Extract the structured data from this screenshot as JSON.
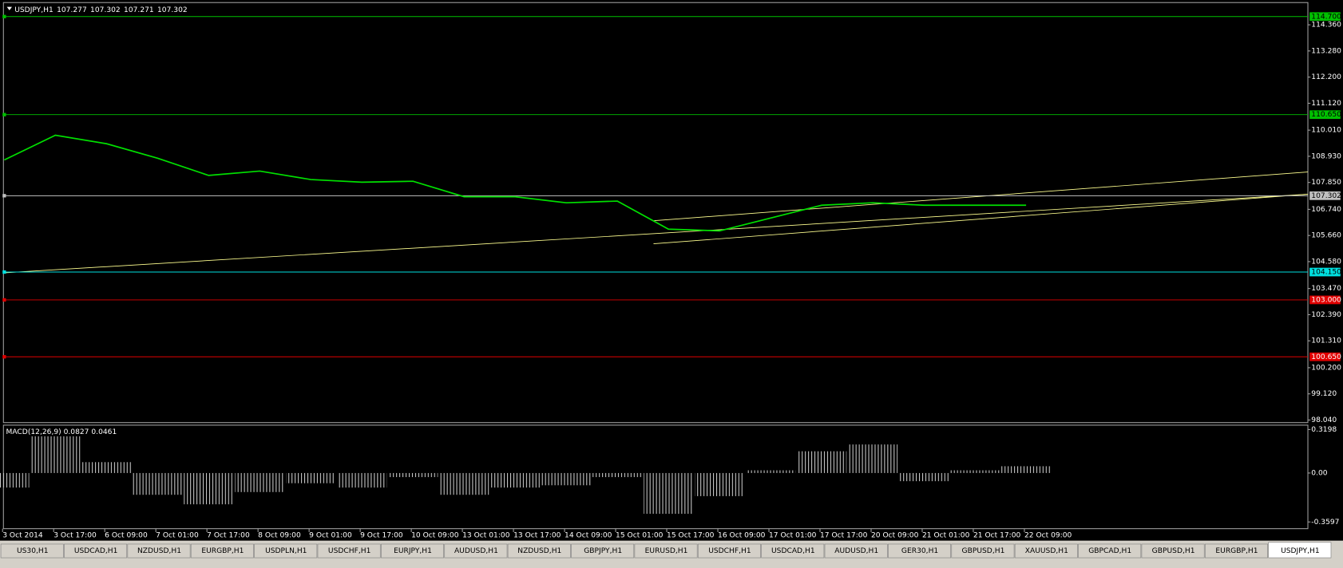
{
  "header": {
    "symbol": "USDJPY,H1",
    "open": 107.277,
    "high": 107.302,
    "low": 107.271,
    "close": 107.302
  },
  "chart_data": [
    {
      "type": "line",
      "color": "#00e000",
      "categories": [
        "3 Oct 2014",
        "3 Oct 17:00",
        "6 Oct 09:00",
        "7 Oct 01:00",
        "7 Oct 17:00",
        "8 Oct 09:00",
        "9 Oct 01:00",
        "9 Oct 17:00",
        "10 Oct 09:00",
        "13 Oct 01:00",
        "13 Oct 17:00",
        "14 Oct 09:00",
        "15 Oct 01:00",
        "15 Oct 17:00",
        "16 Oct 09:00",
        "17 Oct 01:00",
        "17 Oct 17:00",
        "20 Oct 09:00",
        "21 Oct 01:00",
        "21 Oct 17:00",
        "22 Oct 09:00"
      ],
      "values": [
        108.78,
        109.8,
        109.45,
        108.85,
        108.14,
        108.32,
        107.97,
        107.86,
        107.9,
        107.26,
        107.26,
        107.01,
        107.08,
        105.92,
        105.85,
        106.38,
        106.91,
        107.01,
        106.91,
        106.91,
        106.91
      ],
      "ylim": [
        97.934,
        115.278
      ],
      "yticks": [
        {
          "value": 114.36,
          "label": "114.360"
        },
        {
          "value": 113.28,
          "label": "113.280"
        },
        {
          "value": 112.2,
          "label": "112.200"
        },
        {
          "value": 111.12,
          "label": "111.120"
        },
        {
          "value": 110.01,
          "label": "110.010"
        },
        {
          "value": 108.93,
          "label": "108.930"
        },
        {
          "value": 107.85,
          "label": "107.850"
        },
        {
          "value": 106.74,
          "label": "106.740"
        },
        {
          "value": 105.66,
          "label": "105.660"
        },
        {
          "value": 104.58,
          "label": "104.580"
        },
        {
          "value": 103.47,
          "label": "103.470"
        },
        {
          "value": 102.39,
          "label": "102.390"
        },
        {
          "value": 101.31,
          "label": "101.310"
        },
        {
          "value": 100.2,
          "label": "100.200"
        },
        {
          "value": 99.12,
          "label": "99.120"
        },
        {
          "value": 98.04,
          "label": "98.040"
        }
      ],
      "levels": [
        {
          "value": 114.7,
          "label": "114.700",
          "color": "#00c000"
        },
        {
          "value": 110.65,
          "label": "110.650",
          "color": "#00c000"
        },
        {
          "value": 107.302,
          "label": "107.302",
          "color": "#c0c0c0"
        },
        {
          "value": 104.15,
          "label": "104.150",
          "color": "#00e0e0"
        },
        {
          "value": 103,
          "label": "103.000",
          "color": "#e00000"
        },
        {
          "value": 100.65,
          "label": "100.650",
          "color": "#e00000"
        }
      ]
    },
    {
      "type": "bar",
      "title": "MACD(12,26,9) 0.0827 0.0461",
      "color": "#c0c0c0",
      "values": [
        -0.107,
        0.27,
        0.08,
        -0.16,
        -0.23,
        -0.14,
        -0.075,
        -0.107,
        -0.03,
        -0.16,
        -0.107,
        -0.09,
        -0.03,
        -0.3,
        -0.17,
        0.02,
        0.16,
        0.21,
        -0.06,
        0.02,
        0.05
      ],
      "ylim": [
        -0.409,
        0.352
      ],
      "yticks": [
        0.3198,
        {
          "value": 0,
          "label": "0.00"
        },
        -0.3597
      ]
    }
  ],
  "tabs": [
    "US30,H1",
    "USDCAD,H1",
    "NZDUSD,H1",
    "EURGBP,H1",
    "USDPLN,H1",
    "USDCHF,H1",
    "EURJPY,H1",
    "AUDUSD,H1",
    "NZDUSD,H1",
    "GBPJPY,H1",
    "EURUSD,H1",
    "USDCHF,H1",
    "USDCAD,H1",
    "AUDUSD,H1",
    "GER30,H1",
    "GBPUSD,H1",
    "XAUUSD,H1",
    "GBPCAD,H1",
    "GBPUSD,H1",
    "EURGBP,H1",
    "USDJPY,H1"
  ]
}
